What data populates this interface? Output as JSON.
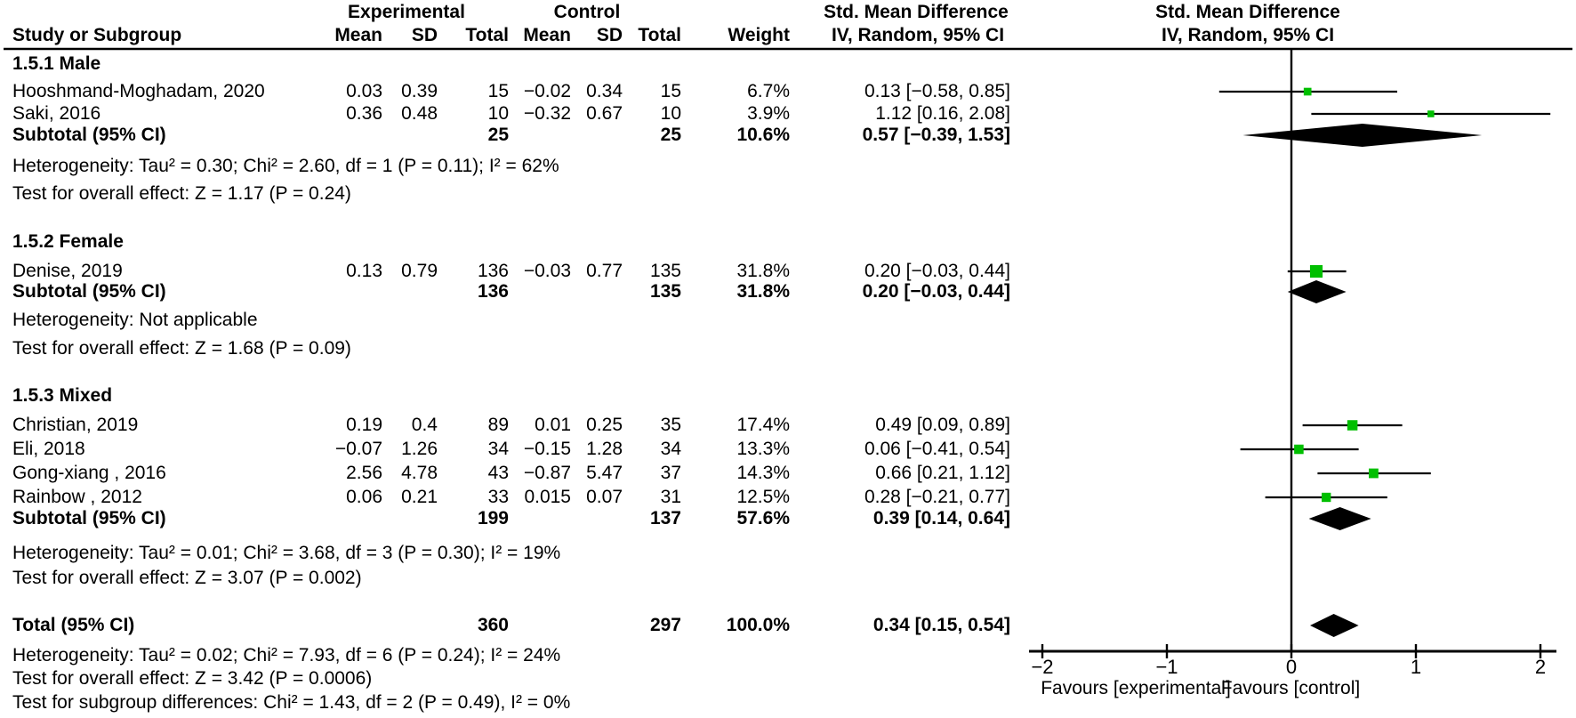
{
  "header": {
    "experimental": "Experimental",
    "control": "Control",
    "smd_col_title": "Std. Mean Difference",
    "smd_col_sub": "IV, Random, 95% CI",
    "smd_plot_title": "Std. Mean Difference",
    "smd_plot_sub": "IV, Random, 95% CI",
    "study": "Study or Subgroup",
    "mean": "Mean",
    "sd": "SD",
    "total": "Total",
    "weight": "Weight"
  },
  "sections": [
    {
      "title": "1.5.1 Male",
      "studies": [
        {
          "label": "Hooshmand-Moghadam, 2020",
          "mean1": "0.03",
          "sd1": "0.39",
          "n1": "15",
          "mean2": "−0.02",
          "sd2": "0.34",
          "n2": "15",
          "weight": "6.7%",
          "ci": "0.13 [−0.58, 0.85]"
        },
        {
          "label": "Saki, 2016",
          "mean1": "0.36",
          "sd1": "0.48",
          "n1": "10",
          "mean2": "−0.32",
          "sd2": "0.67",
          "n2": "10",
          "weight": "3.9%",
          "ci": "1.12 [0.16, 2.08]"
        }
      ],
      "subtotal": {
        "label": "Subtotal (95% CI)",
        "n1": "25",
        "n2": "25",
        "weight": "10.6%",
        "ci": "0.57 [−0.39, 1.53]"
      },
      "heterogeneity": "Heterogeneity: Tau² = 0.30; Chi² = 2.60, df = 1 (P = 0.11); I² = 62%",
      "overall_effect": "Test for overall effect: Z = 1.17 (P = 0.24)"
    },
    {
      "title": "1.5.2 Female",
      "studies": [
        {
          "label": "Denise, 2019",
          "mean1": "0.13",
          "sd1": "0.79",
          "n1": "136",
          "mean2": "−0.03",
          "sd2": "0.77",
          "n2": "135",
          "weight": "31.8%",
          "ci": "0.20 [−0.03, 0.44]"
        }
      ],
      "subtotal": {
        "label": "Subtotal (95% CI)",
        "n1": "136",
        "n2": "135",
        "weight": "31.8%",
        "ci": "0.20 [−0.03, 0.44]"
      },
      "heterogeneity": "Heterogeneity: Not applicable",
      "overall_effect": "Test for overall effect: Z = 1.68 (P = 0.09)"
    },
    {
      "title": "1.5.3 Mixed",
      "studies": [
        {
          "label": "Christian, 2019",
          "mean1": "0.19",
          "sd1": "0.4",
          "n1": "89",
          "mean2": "0.01",
          "sd2": "0.25",
          "n2": "35",
          "weight": "17.4%",
          "ci": "0.49 [0.09, 0.89]"
        },
        {
          "label": "Eli, 2018",
          "mean1": "−0.07",
          "sd1": "1.26",
          "n1": "34",
          "mean2": "−0.15",
          "sd2": "1.28",
          "n2": "34",
          "weight": "13.3%",
          "ci": "0.06 [−0.41, 0.54]"
        },
        {
          "label": "Gong-xiang , 2016",
          "mean1": "2.56",
          "sd1": "4.78",
          "n1": "43",
          "mean2": "−0.87",
          "sd2": "5.47",
          "n2": "37",
          "weight": "14.3%",
          "ci": "0.66 [0.21, 1.12]"
        },
        {
          "label": "Rainbow , 2012",
          "mean1": "0.06",
          "sd1": "0.21",
          "n1": "33",
          "mean2": "0.015",
          "sd2": "0.07",
          "n2": "31",
          "weight": "12.5%",
          "ci": "0.28 [−0.21, 0.77]"
        }
      ],
      "subtotal": {
        "label": "Subtotal (95% CI)",
        "n1": "199",
        "n2": "137",
        "weight": "57.6%",
        "ci": "0.39 [0.14, 0.64]"
      },
      "heterogeneity": "Heterogeneity: Tau² = 0.01; Chi² = 3.68, df = 3 (P = 0.30); I² = 19%",
      "overall_effect": "Test for overall effect: Z = 3.07 (P = 0.002)"
    }
  ],
  "total": {
    "label": "Total (95% CI)",
    "n1": "360",
    "n2": "297",
    "weight": "100.0%",
    "ci": "0.34 [0.15, 0.54]"
  },
  "footer": {
    "heterogeneity": "Heterogeneity: Tau² = 0.02; Chi² = 7.93, df = 6 (P = 0.24); I² = 24%",
    "overall_effect": "Test for overall effect: Z = 3.42 (P = 0.0006)",
    "subgroup_differences": "Test for subgroup differences: Chi² = 1.43, df = 2 (P = 0.49), I² = 0%"
  },
  "axis": {
    "tick_labels": [
      "−2",
      "−1",
      "0",
      "1",
      "2"
    ],
    "favours_left": "Favours [experimental]",
    "favours_right": "Favours [control]"
  },
  "colors": {
    "square": "#00bf00",
    "diamond": "#000000",
    "line": "#000000",
    "text": "#000000"
  },
  "chart_data": {
    "type": "forest",
    "effect_measure": "Std. Mean Difference",
    "model": "IV, Random, 95% CI",
    "xlim": [
      -2,
      2
    ],
    "x_ticks": [
      -2,
      -1,
      0,
      1,
      2
    ],
    "xlabel_left": "Favours [experimental]",
    "xlabel_right": "Favours [control]",
    "subgroups": [
      {
        "name": "1.5.1 Male",
        "studies": [
          {
            "name": "Hooshmand-Moghadam, 2020",
            "smd": 0.13,
            "ci": [
              -0.58,
              0.85
            ],
            "weight_pct": 6.7
          },
          {
            "name": "Saki, 2016",
            "smd": 1.12,
            "ci": [
              0.16,
              2.08
            ],
            "weight_pct": 3.9
          }
        ],
        "subtotal": {
          "smd": 0.57,
          "ci": [
            -0.39,
            1.53
          ],
          "weight_pct": 10.6,
          "tau2": 0.3,
          "chi2": 2.6,
          "df": 1,
          "p_het": 0.11,
          "i2_pct": 62,
          "z": 1.17,
          "p_overall": 0.24
        }
      },
      {
        "name": "1.5.2 Female",
        "studies": [
          {
            "name": "Denise, 2019",
            "smd": 0.2,
            "ci": [
              -0.03,
              0.44
            ],
            "weight_pct": 31.8
          }
        ],
        "subtotal": {
          "smd": 0.2,
          "ci": [
            -0.03,
            0.44
          ],
          "weight_pct": 31.8,
          "z": 1.68,
          "p_overall": 0.09
        }
      },
      {
        "name": "1.5.3 Mixed",
        "studies": [
          {
            "name": "Christian, 2019",
            "smd": 0.49,
            "ci": [
              0.09,
              0.89
            ],
            "weight_pct": 17.4
          },
          {
            "name": "Eli, 2018",
            "smd": 0.06,
            "ci": [
              -0.41,
              0.54
            ],
            "weight_pct": 13.3
          },
          {
            "name": "Gong-xiang , 2016",
            "smd": 0.66,
            "ci": [
              0.21,
              1.12
            ],
            "weight_pct": 14.3
          },
          {
            "name": "Rainbow , 2012",
            "smd": 0.28,
            "ci": [
              -0.21,
              0.77
            ],
            "weight_pct": 12.5
          }
        ],
        "subtotal": {
          "smd": 0.39,
          "ci": [
            0.14,
            0.64
          ],
          "weight_pct": 57.6,
          "tau2": 0.01,
          "chi2": 3.68,
          "df": 3,
          "p_het": 0.3,
          "i2_pct": 19,
          "z": 3.07,
          "p_overall": 0.002
        }
      }
    ],
    "overall": {
      "smd": 0.34,
      "ci": [
        0.15,
        0.54
      ],
      "weight_pct": 100.0,
      "tau2": 0.02,
      "chi2": 7.93,
      "df": 6,
      "p_het": 0.24,
      "i2_pct": 24,
      "z": 3.42,
      "p_overall": 0.0006,
      "subgroup_diff_chi2": 1.43,
      "subgroup_diff_df": 2,
      "subgroup_diff_p": 0.49,
      "subgroup_diff_i2_pct": 0
    }
  }
}
